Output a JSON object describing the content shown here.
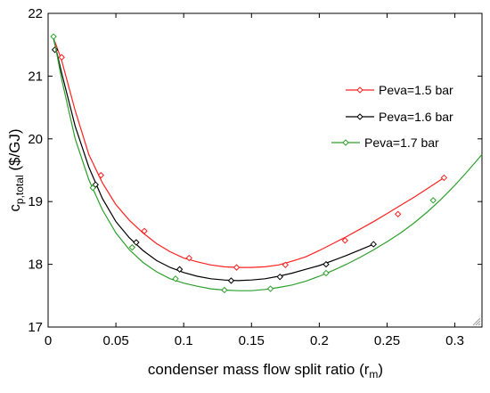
{
  "chart_data": {
    "type": "line",
    "title": "",
    "xlabel": "condenser mass flow split ratio (r",
    "xlabel_sub": "m",
    "xlabel_close": ")",
    "ylabel_main": "c",
    "ylabel_sub": "p,total",
    "ylabel_rest": " ($/GJ)",
    "xlim": [
      0,
      0.32
    ],
    "ylim": [
      17,
      22
    ],
    "xticks": [
      0,
      0.05,
      0.1,
      0.15,
      0.2,
      0.25,
      0.3
    ],
    "xtick_labels": [
      "0",
      "0.05",
      "0.1",
      "0.15",
      "0.2",
      "0.25",
      "0.3"
    ],
    "yticks": [
      17,
      18,
      19,
      20,
      21,
      22
    ],
    "ytick_labels": [
      "17",
      "18",
      "19",
      "20",
      "21",
      "22"
    ],
    "grid": false,
    "legend_position": "right",
    "series": [
      {
        "name": "Peva=1.5 bar",
        "color": "#ff2020",
        "curve": [
          [
            0.005,
            21.55
          ],
          [
            0.01,
            21.25
          ],
          [
            0.02,
            20.45
          ],
          [
            0.03,
            19.75
          ],
          [
            0.04,
            19.3
          ],
          [
            0.05,
            18.95
          ],
          [
            0.06,
            18.7
          ],
          [
            0.07,
            18.5
          ],
          [
            0.08,
            18.33
          ],
          [
            0.09,
            18.2
          ],
          [
            0.1,
            18.1
          ],
          [
            0.11,
            18.04
          ],
          [
            0.12,
            17.99
          ],
          [
            0.13,
            17.96
          ],
          [
            0.14,
            17.95
          ],
          [
            0.15,
            17.95
          ],
          [
            0.16,
            17.96
          ],
          [
            0.17,
            17.99
          ],
          [
            0.18,
            18.05
          ],
          [
            0.19,
            18.12
          ],
          [
            0.2,
            18.22
          ],
          [
            0.21,
            18.33
          ],
          [
            0.22,
            18.44
          ],
          [
            0.23,
            18.56
          ],
          [
            0.24,
            18.68
          ],
          [
            0.25,
            18.81
          ],
          [
            0.26,
            18.94
          ],
          [
            0.27,
            19.07
          ],
          [
            0.28,
            19.21
          ],
          [
            0.292,
            19.38
          ]
        ],
        "markers": [
          [
            0.01,
            21.3
          ],
          [
            0.039,
            19.42
          ],
          [
            0.071,
            18.53
          ],
          [
            0.104,
            18.1
          ],
          [
            0.139,
            17.95
          ],
          [
            0.175,
            17.99
          ],
          [
            0.219,
            18.38
          ],
          [
            0.258,
            18.8
          ],
          [
            0.292,
            19.38
          ]
        ]
      },
      {
        "name": "Peva=1.6 bar",
        "color": "#000000",
        "curve": [
          [
            0.004,
            21.6
          ],
          [
            0.01,
            21.05
          ],
          [
            0.02,
            20.2
          ],
          [
            0.03,
            19.55
          ],
          [
            0.04,
            19.05
          ],
          [
            0.05,
            18.68
          ],
          [
            0.06,
            18.42
          ],
          [
            0.07,
            18.22
          ],
          [
            0.08,
            18.06
          ],
          [
            0.09,
            17.95
          ],
          [
            0.1,
            17.87
          ],
          [
            0.11,
            17.81
          ],
          [
            0.12,
            17.77
          ],
          [
            0.13,
            17.75
          ],
          [
            0.14,
            17.74
          ],
          [
            0.15,
            17.75
          ],
          [
            0.16,
            17.77
          ],
          [
            0.17,
            17.81
          ],
          [
            0.18,
            17.86
          ],
          [
            0.19,
            17.92
          ],
          [
            0.2,
            17.98
          ],
          [
            0.21,
            18.06
          ],
          [
            0.22,
            18.14
          ],
          [
            0.23,
            18.23
          ],
          [
            0.24,
            18.32
          ]
        ],
        "markers": [
          [
            0.005,
            21.42
          ],
          [
            0.035,
            19.27
          ],
          [
            0.065,
            18.35
          ],
          [
            0.097,
            17.92
          ],
          [
            0.135,
            17.74
          ],
          [
            0.171,
            17.8
          ],
          [
            0.205,
            18.0
          ],
          [
            0.24,
            18.32
          ]
        ]
      },
      {
        "name": "Peva=1.7 bar",
        "color": "#2ca02c",
        "curve": [
          [
            0.004,
            21.63
          ],
          [
            0.01,
            20.95
          ],
          [
            0.02,
            20.0
          ],
          [
            0.03,
            19.35
          ],
          [
            0.04,
            18.87
          ],
          [
            0.05,
            18.5
          ],
          [
            0.06,
            18.23
          ],
          [
            0.07,
            18.03
          ],
          [
            0.08,
            17.88
          ],
          [
            0.09,
            17.77
          ],
          [
            0.1,
            17.7
          ],
          [
            0.11,
            17.65
          ],
          [
            0.12,
            17.61
          ],
          [
            0.13,
            17.59
          ],
          [
            0.14,
            17.58
          ],
          [
            0.15,
            17.58
          ],
          [
            0.16,
            17.6
          ],
          [
            0.17,
            17.63
          ],
          [
            0.18,
            17.67
          ],
          [
            0.19,
            17.73
          ],
          [
            0.2,
            17.81
          ],
          [
            0.21,
            17.9
          ],
          [
            0.22,
            18.0
          ],
          [
            0.23,
            18.11
          ],
          [
            0.24,
            18.23
          ],
          [
            0.25,
            18.36
          ],
          [
            0.26,
            18.5
          ],
          [
            0.27,
            18.66
          ],
          [
            0.28,
            18.84
          ],
          [
            0.29,
            19.04
          ],
          [
            0.3,
            19.26
          ],
          [
            0.31,
            19.5
          ],
          [
            0.32,
            19.75
          ]
        ],
        "markers": [
          [
            0.004,
            21.63
          ],
          [
            0.033,
            19.22
          ],
          [
            0.062,
            18.27
          ],
          [
            0.094,
            17.77
          ],
          [
            0.13,
            17.59
          ],
          [
            0.164,
            17.61
          ],
          [
            0.205,
            17.86
          ],
          [
            0.284,
            19.02
          ]
        ]
      }
    ]
  }
}
